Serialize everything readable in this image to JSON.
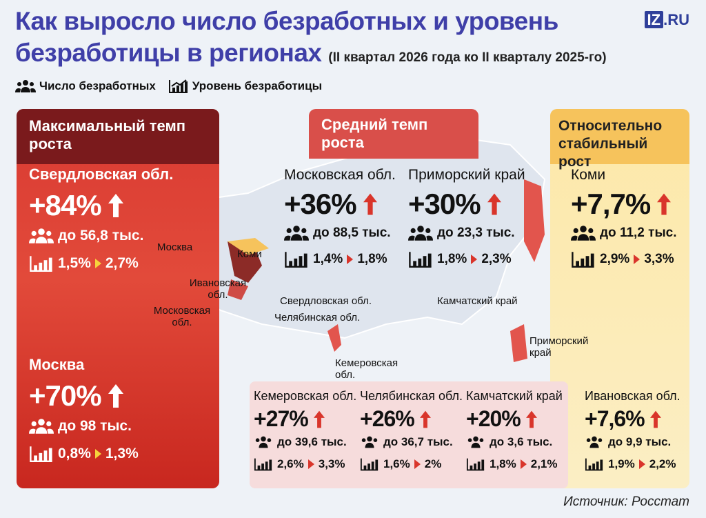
{
  "header": {
    "title_line1": "Как выросло число безработных и уровень",
    "title_line2": "безработицы в регионах",
    "subtitle": "(II квартал 2026 года ко II кварталу 2025-го)",
    "logo_mark": "IZ",
    "logo_domain": ".RU"
  },
  "legend": {
    "unemployed": "Число безработных",
    "rate": "Уровень безработицы"
  },
  "groups": {
    "max": "Максимальный темп роста",
    "mid": "Средний темп роста",
    "stable": "Относительно стабильный рост"
  },
  "regions": [
    {
      "id": "sverdlovsk",
      "name": "Свердловская обл.",
      "growth": "+84%",
      "count": "до 56,8 тыс.",
      "rate_from": "1,5%",
      "rate_to": "2,7%"
    },
    {
      "id": "moscow",
      "name": "Москва",
      "growth": "+70%",
      "count": "до 98 тыс.",
      "rate_from": "0,8%",
      "rate_to": "1,3%"
    },
    {
      "id": "mosobl",
      "name": "Московская обл.",
      "growth": "+36%",
      "count": "до 88,5 тыс.",
      "rate_from": "1,4%",
      "rate_to": "1,8%"
    },
    {
      "id": "primorye",
      "name": "Приморский край",
      "growth": "+30%",
      "count": "до 23,3 тыс.",
      "rate_from": "1,8%",
      "rate_to": "2,3%"
    },
    {
      "id": "komi",
      "name": "Коми",
      "growth": "+7,7%",
      "count": "до 11,2 тыс.",
      "rate_from": "2,9%",
      "rate_to": "3,3%"
    },
    {
      "id": "kemerovo",
      "name": "Кемеровская обл.",
      "growth": "+27%",
      "count": "до 39,6 тыс.",
      "rate_from": "2,6%",
      "rate_to": "3,3%"
    },
    {
      "id": "chelyabinsk",
      "name": "Челябинская обл.",
      "growth": "+26%",
      "count": "до 36,7 тыс.",
      "rate_from": "1,6%",
      "rate_to": "2%"
    },
    {
      "id": "kamchatka",
      "name": "Камчатский край",
      "growth": "+20%",
      "count": "до 3,6 тыс.",
      "rate_from": "1,8%",
      "rate_to": "2,1%"
    },
    {
      "id": "ivanovo",
      "name": "Ивановская обл.",
      "growth": "+7,6%",
      "count": "до 9,9 тыс.",
      "rate_from": "1,9%",
      "rate_to": "2,2%"
    }
  ],
  "map_labels": {
    "moscow": "Москва",
    "komi": "Коми",
    "ivanovo": "Ивановская обл.",
    "mosobl": "Московская обл.",
    "sverdlovsk": "Свердловская обл.",
    "chelyabinsk": "Челябинская обл.",
    "kemerovo": "Кемеровская обл.",
    "kamchatka": "Камчатский край",
    "primorye": "Приморский край"
  },
  "source": "Источник: Росстат",
  "colors": {
    "title": "#3f3fa8",
    "max": "#d93a32",
    "mid": "#d94f4a",
    "stable": "#f6c35c",
    "arrow": "#d9352b"
  }
}
